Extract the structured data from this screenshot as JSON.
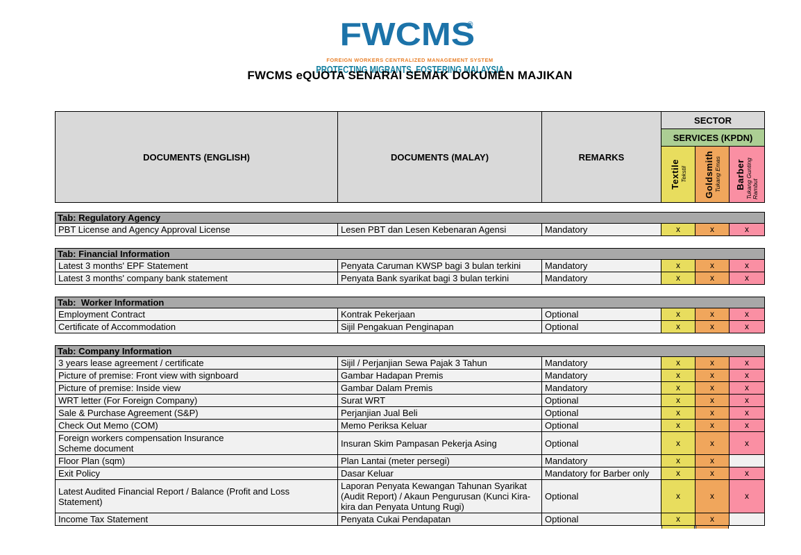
{
  "logo": {
    "brand": "FWCMS",
    "registered": "®",
    "subtitle": "FOREIGN WORKERS CENTRALIZED MANAGEMENT SYSTEM",
    "tagline": "PROTECTING MIGRANTS, FOSTERING MALAYSIA",
    "brand_color": "#1C73A9",
    "subtitle_color": "#E8822D",
    "tagline_color": "#1580A0"
  },
  "title": "FWCMS eQUOTA SENARAI SEMAK DOKUMEN MAJIKAN",
  "table": {
    "mark": "x",
    "colors": {
      "header_bg": "#D9D9D9",
      "section_bg": "#A8A8A8",
      "services_bg": "#ACCE94",
      "row_bg": "#F1F1F1",
      "border": "#000000"
    },
    "headers": {
      "english": "DOCUMENTS (ENGLISH)",
      "malay": "DOCUMENTS (MALAY)",
      "remarks": "REMARKS",
      "sector": "SECTOR",
      "services": "SERVICES (KPDN)",
      "sector_columns": [
        {
          "name": "Textile",
          "local": "Tekstil",
          "bg": "#E8DD5E"
        },
        {
          "name": "Goldsmith",
          "local": "Tukang Emas",
          "bg": "#F0A65C"
        },
        {
          "name": "Barber",
          "local": "Tukang Gunting Rambut",
          "bg": "#FA8FA3"
        }
      ]
    },
    "sections": [
      {
        "title": "Tab: Regulatory Agency",
        "rows": [
          {
            "en": "PBT License and Agency Approval License",
            "ms": "Lesen PBT dan Lesen Kebenaran Agensi",
            "remark": "Mandatory",
            "marks": [
              1,
              1,
              1
            ]
          }
        ]
      },
      {
        "title": "Tab: Financial Information",
        "rows": [
          {
            "en": "Latest 3 months' EPF Statement",
            "ms": "Penyata Caruman KWSP bagi 3 bulan terkini",
            "remark": "Mandatory",
            "marks": [
              1,
              1,
              1
            ]
          },
          {
            "en": "Latest 3 months' company bank statement",
            "ms": "Penyata Bank syarikat bagi 3 bulan terkini",
            "remark": "Mandatory",
            "marks": [
              1,
              1,
              1
            ]
          }
        ]
      },
      {
        "title": "Tab:  Worker Information",
        "rows": [
          {
            "en": "Employment Contract",
            "ms": "Kontrak Pekerjaan",
            "remark": "Optional",
            "marks": [
              1,
              1,
              1
            ]
          },
          {
            "en": "Certificate of Accommodation",
            "ms": "Sijil Pengakuan Penginapan",
            "remark": "Optional",
            "marks": [
              1,
              1,
              1
            ]
          }
        ]
      },
      {
        "title": "Tab: Company Information",
        "rows": [
          {
            "en": "3 years lease agreement / certificate",
            "ms": "Sijil / Perjanjian Sewa Pajak 3 Tahun",
            "remark": "Mandatory",
            "marks": [
              1,
              1,
              1
            ]
          },
          {
            "en": "Picture of premise: Front view with signboard",
            "ms": "Gambar Hadapan Premis",
            "remark": "Mandatory",
            "marks": [
              1,
              1,
              1
            ]
          },
          {
            "en": "Picture of premise: Inside view",
            "ms": "Gambar Dalam Premis",
            "remark": "Mandatory",
            "marks": [
              1,
              1,
              1
            ]
          },
          {
            "en": "WRT letter (For Foreign Company)",
            "ms": "Surat WRT",
            "remark": "Optional",
            "marks": [
              1,
              1,
              1
            ]
          },
          {
            "en": "Sale & Purchase Agreement (S&P)",
            "ms": "Perjanjian Jual Beli",
            "remark": "Optional",
            "marks": [
              1,
              1,
              1
            ]
          },
          {
            "en": "Check Out Memo (COM)",
            "ms": "Memo Periksa Keluar",
            "remark": "Optional",
            "marks": [
              1,
              1,
              1
            ]
          },
          {
            "en": "Foreign workers compensation Insurance\nScheme document",
            "ms": "Insuran Skim Pampasan Pekerja Asing",
            "remark": "Optional",
            "marks": [
              1,
              1,
              1
            ]
          },
          {
            "en": "Floor Plan (sqm)",
            "ms": "Plan Lantai (meter persegi)",
            "remark": "Mandatory",
            "marks": [
              1,
              1,
              0
            ]
          },
          {
            "en": "Exit Policy",
            "ms": "Dasar Keluar",
            "remark": "Mandatory for Barber only",
            "marks": [
              1,
              1,
              1
            ]
          },
          {
            "en": "Latest Audited Financial Report / Balance (Profit and Loss Statement)",
            "ms": "Laporan Penyata Kewangan Tahunan Syarikat (Audit Report) / Akaun Pengurusan (Kunci Kira-kira dan Penyata Untung Rugi)",
            "remark": "Optional",
            "marks": [
              1,
              1,
              1
            ]
          },
          {
            "en": "Income Tax Statement",
            "ms": "Penyata Cukai Pendapatan",
            "remark": "Optional",
            "marks": [
              1,
              1,
              0
            ]
          }
        ]
      }
    ],
    "cutoff_row": {
      "marks": [
        1,
        1,
        0
      ]
    }
  }
}
